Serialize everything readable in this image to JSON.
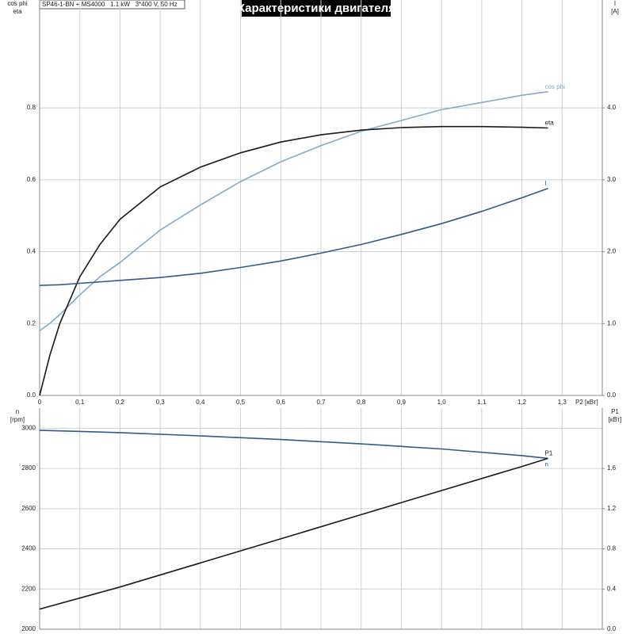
{
  "chart_data": [
    {
      "type": "line",
      "title": "Характеристики двигателя",
      "subtitle": "SP46-1-BN + MS4000   1.1 kW   3*400 V, 50 Hz",
      "xlabel": "P2 [кВт]",
      "ylabel_lines": [
        "cos phi",
        "eta"
      ],
      "y2label_lines": [
        "I",
        "[A]"
      ],
      "x": [
        0,
        0.025,
        0.05,
        0.1,
        0.15,
        0.2,
        0.3,
        0.4,
        0.5,
        0.6,
        0.7,
        0.8,
        0.9,
        1.0,
        1.1,
        1.2,
        1.265
      ],
      "series": [
        {
          "name": "cos phi",
          "color": "#86a9c9",
          "values": [
            0.18,
            0.2,
            0.225,
            0.28,
            0.33,
            0.37,
            0.46,
            0.53,
            0.595,
            0.65,
            0.695,
            0.735,
            0.765,
            0.795,
            0.815,
            0.835,
            0.845
          ]
        },
        {
          "name": "eta",
          "color": "#1a1a1a",
          "values": [
            0,
            0.11,
            0.2,
            0.33,
            0.42,
            0.49,
            0.58,
            0.635,
            0.675,
            0.705,
            0.725,
            0.738,
            0.745,
            0.748,
            0.748,
            0.746,
            0.744
          ]
        },
        {
          "name": "I",
          "color": "#2f5b8a",
          "axis": "y2",
          "values": [
            1.53,
            1.535,
            1.54,
            1.56,
            1.58,
            1.6,
            1.64,
            1.7,
            1.78,
            1.87,
            1.98,
            2.1,
            2.24,
            2.39,
            2.56,
            2.75,
            2.88
          ]
        }
      ],
      "xlim": [
        0,
        1.4
      ],
      "xticks": [
        0,
        {
          "value": 0.1,
          "label": "0,1"
        },
        {
          "value": 0.2,
          "label": "0,2"
        },
        {
          "value": 0.3,
          "label": "0,3"
        },
        {
          "value": 0.4,
          "label": "0,4"
        },
        {
          "value": 0.5,
          "label": "0,5"
        },
        {
          "value": 0.6,
          "label": "0,6"
        },
        {
          "value": 0.7,
          "label": "0,7"
        },
        {
          "value": 0.8,
          "label": "0,8"
        },
        {
          "value": 0.9,
          "label": "0,9"
        },
        {
          "value": 1.0,
          "label": "1,0"
        },
        {
          "value": 1.1,
          "label": "1,1"
        },
        {
          "value": 1.2,
          "label": "1,2"
        },
        {
          "value": 1.3,
          "label": "1,3"
        }
      ],
      "ylim": [
        0,
        1.1
      ],
      "yticks": [
        {
          "value": 0,
          "label": "0.0"
        },
        0.2,
        0.4,
        0.6,
        0.8
      ],
      "y2lim": [
        0,
        5.5
      ],
      "y2ticks": [
        {
          "value": 0,
          "label": "0.0"
        },
        {
          "value": 1,
          "label": "1.0"
        },
        {
          "value": 2,
          "label": "2.0"
        },
        {
          "value": 3,
          "label": "3.0"
        },
        {
          "value": 4,
          "label": "4.0"
        }
      ],
      "grid": true
    },
    {
      "type": "line",
      "ylabel_lines": [
        "n",
        "[rpm]"
      ],
      "y2label_lines": [
        "P1",
        "[кВт]"
      ],
      "x": [
        0,
        0.2,
        0.4,
        0.6,
        0.8,
        1.0,
        1.2,
        1.265
      ],
      "series": [
        {
          "name": "n",
          "color": "#2f5b8a",
          "values": [
            2990,
            2978,
            2962,
            2944,
            2922,
            2897,
            2864,
            2850
          ]
        },
        {
          "name": "P1",
          "color": "#1a1a1a",
          "axis": "y2",
          "values": [
            0.2,
            0.42,
            0.66,
            0.9,
            1.14,
            1.38,
            1.62,
            1.7
          ]
        }
      ],
      "xlim": [
        0,
        1.4
      ],
      "xticks": [
        0,
        0.1,
        0.2,
        0.3,
        0.4,
        0.5,
        0.6,
        0.7,
        0.8,
        0.9,
        1.0,
        1.1,
        1.2,
        1.3
      ],
      "ylim": [
        2000,
        3100
      ],
      "yticks": [
        2000,
        2200,
        2400,
        2600,
        2800,
        3000
      ],
      "y2lim": [
        0,
        2.2
      ],
      "y2ticks": [
        {
          "value": 0,
          "label": "0.0"
        },
        0.4,
        0.8,
        1.2,
        1.6
      ],
      "grid": true
    }
  ]
}
